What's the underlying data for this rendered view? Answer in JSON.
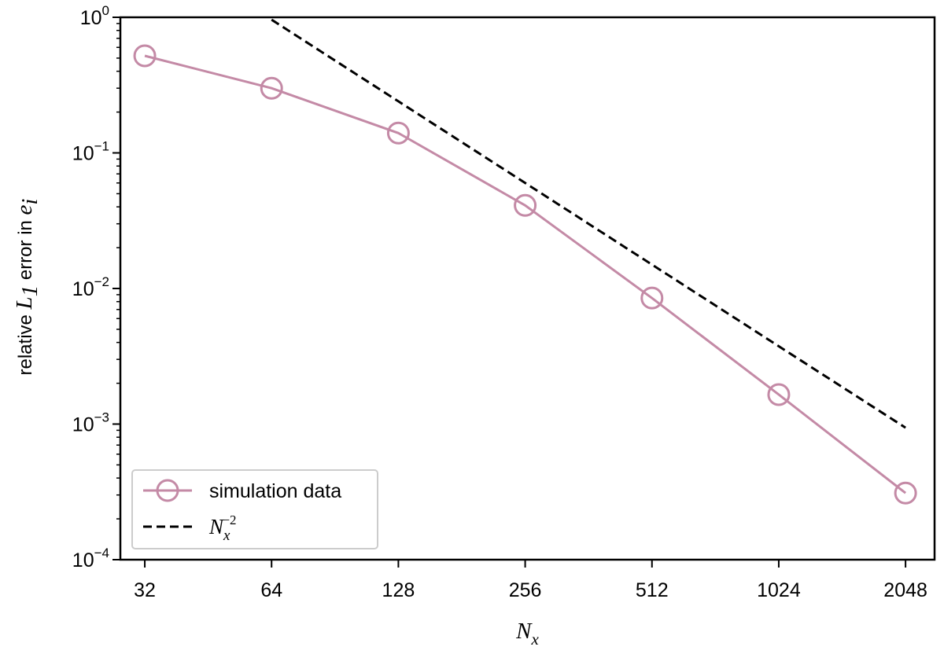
{
  "chart_data": {
    "type": "line",
    "x_scale": "log2",
    "y_scale": "log10",
    "x": [
      32,
      64,
      128,
      256,
      512,
      1024,
      2048
    ],
    "xticks": [
      "32",
      "64",
      "128",
      "256",
      "512",
      "1024",
      "2048"
    ],
    "xlim": [
      28,
      2400
    ],
    "ylim": [
      0.0001,
      1
    ],
    "yticks": [
      {
        "value": 1,
        "base": "10",
        "exp": "0"
      },
      {
        "value": 0.1,
        "base": "10",
        "exp": "−1"
      },
      {
        "value": 0.01,
        "base": "10",
        "exp": "−2"
      },
      {
        "value": 0.001,
        "base": "10",
        "exp": "−3"
      },
      {
        "value": 0.0001,
        "base": "10",
        "exp": "−4"
      }
    ],
    "xlabel": {
      "main": "N",
      "sub": "x"
    },
    "ylabel": {
      "text": "relative ",
      "math": "L",
      "math_sub": "1",
      "text2": " error in ",
      "math2": "e",
      "math2_sub": "i"
    },
    "series": [
      {
        "name": "simulation data",
        "color": "#c48aa6",
        "marker": "open-circle",
        "linestyle": "solid",
        "x": [
          32,
          64,
          128,
          256,
          512,
          1024,
          2048
        ],
        "values": [
          0.52,
          0.3,
          0.14,
          0.041,
          0.0085,
          0.00165,
          0.00031
        ]
      },
      {
        "name": "N_x^-2",
        "legend": {
          "main": "N",
          "sub": "x",
          "sup": "−2"
        },
        "color": "#000000",
        "marker": "none",
        "linestyle": "dashed",
        "x": [
          64,
          128,
          256,
          512,
          1024,
          2048
        ],
        "values": [
          0.96,
          0.24,
          0.06,
          0.015,
          0.00375,
          0.00094
        ]
      }
    ],
    "legend_position": "lower-left",
    "grid": false
  }
}
